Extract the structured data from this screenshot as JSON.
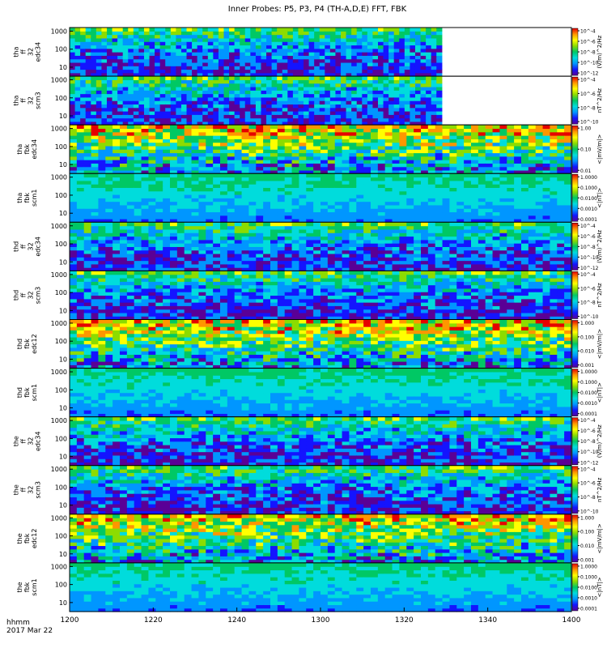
{
  "chart_data": {
    "type": "heatmap",
    "title": "Inner Probes: P5, P3, P4 (TH-A,D,E) FFT, FBK",
    "x_tick_labels": [
      "1200",
      "1220",
      "1240",
      "1300",
      "1320",
      "1340",
      "1400"
    ],
    "x_range": [
      "1200",
      "1400"
    ],
    "x_title": {
      "line1": "hhmm",
      "line2": "2017 Mar 22"
    },
    "y_scale": "log",
    "y_tick_labels": [
      "10",
      "100",
      "1000"
    ],
    "colormap": [
      "#5a0096",
      "#1414ff",
      "#0096ff",
      "#00dcdc",
      "#00c864",
      "#8cdc00",
      "#ffff00",
      "#ff9600",
      "#e60000"
    ],
    "panels": [
      {
        "probe": "tha",
        "mode": "ff",
        "qual": "32",
        "channel": "edc34",
        "units": "(V/m)^2/Hz",
        "cb_ticks": [
          "10^-4",
          "10^-6",
          "10^-8",
          "10^-10",
          "10^-12"
        ],
        "data_end": "1329"
      },
      {
        "probe": "tha",
        "mode": "ff",
        "qual": "32",
        "channel": "scm3",
        "units": "nT^2/Hz",
        "cb_ticks": [
          "10^-4",
          "10^-6",
          "10^-8",
          "10^-10"
        ],
        "data_end": "1329"
      },
      {
        "probe": "tha",
        "mode": "fbk",
        "qual": "",
        "channel": "edc34",
        "units": "<|mV/m|>",
        "cb_ticks": [
          "1.00",
          "0.10",
          "0.01"
        ],
        "data_end": "1400"
      },
      {
        "probe": "tha",
        "mode": "fbk",
        "qual": "",
        "channel": "scm1",
        "units": "<|nT|>",
        "cb_ticks": [
          "1.0000",
          "0.1000",
          "0.0100",
          "0.0010",
          "0.0001"
        ],
        "data_end": "1400"
      },
      {
        "probe": "thd",
        "mode": "ff",
        "qual": "32",
        "channel": "edc34",
        "units": "(V/m)^2/Hz",
        "cb_ticks": [
          "10^-4",
          "10^-6",
          "10^-8",
          "10^-10",
          "10^-12"
        ],
        "data_end": "1400"
      },
      {
        "probe": "thd",
        "mode": "ff",
        "qual": "32",
        "channel": "scm3",
        "units": "nT^2/Hz",
        "cb_ticks": [
          "10^-4",
          "10^-6",
          "10^-8",
          "10^-10"
        ],
        "data_end": "1400"
      },
      {
        "probe": "thd",
        "mode": "fbk",
        "qual": "",
        "channel": "edc12",
        "units": "<|mV/m|>",
        "cb_ticks": [
          "1.000",
          "0.100",
          "0.010",
          "0.001"
        ],
        "data_end": "1400"
      },
      {
        "probe": "thd",
        "mode": "fbk",
        "qual": "",
        "channel": "scm1",
        "units": "<|nT|>",
        "cb_ticks": [
          "1.0000",
          "0.1000",
          "0.0100",
          "0.0010",
          "0.0001"
        ],
        "data_end": "1400"
      },
      {
        "probe": "the",
        "mode": "ff",
        "qual": "32",
        "channel": "edc34",
        "units": "(V/m)^2/Hz",
        "cb_ticks": [
          "10^-4",
          "10^-6",
          "10^-8",
          "10^-10",
          "10^-12"
        ],
        "data_end": "1400"
      },
      {
        "probe": "the",
        "mode": "ff",
        "qual": "32",
        "channel": "scm3",
        "units": "nT^2/Hz",
        "cb_ticks": [
          "10^-4",
          "10^-6",
          "10^-8",
          "10^-10"
        ],
        "data_end": "1400"
      },
      {
        "probe": "the",
        "mode": "fbk",
        "qual": "",
        "channel": "edc12",
        "units": "<|mV/m|>",
        "cb_ticks": [
          "1.000",
          "0.100",
          "0.010",
          "0.001"
        ],
        "data_end": "1400"
      },
      {
        "probe": "the",
        "mode": "fbk",
        "qual": "",
        "channel": "scm1",
        "units": "<|nT|>",
        "cb_ticks": [
          "1.0000",
          "0.1000",
          "0.0100",
          "0.0010",
          "0.0001"
        ],
        "data_end": "1400"
      }
    ]
  }
}
